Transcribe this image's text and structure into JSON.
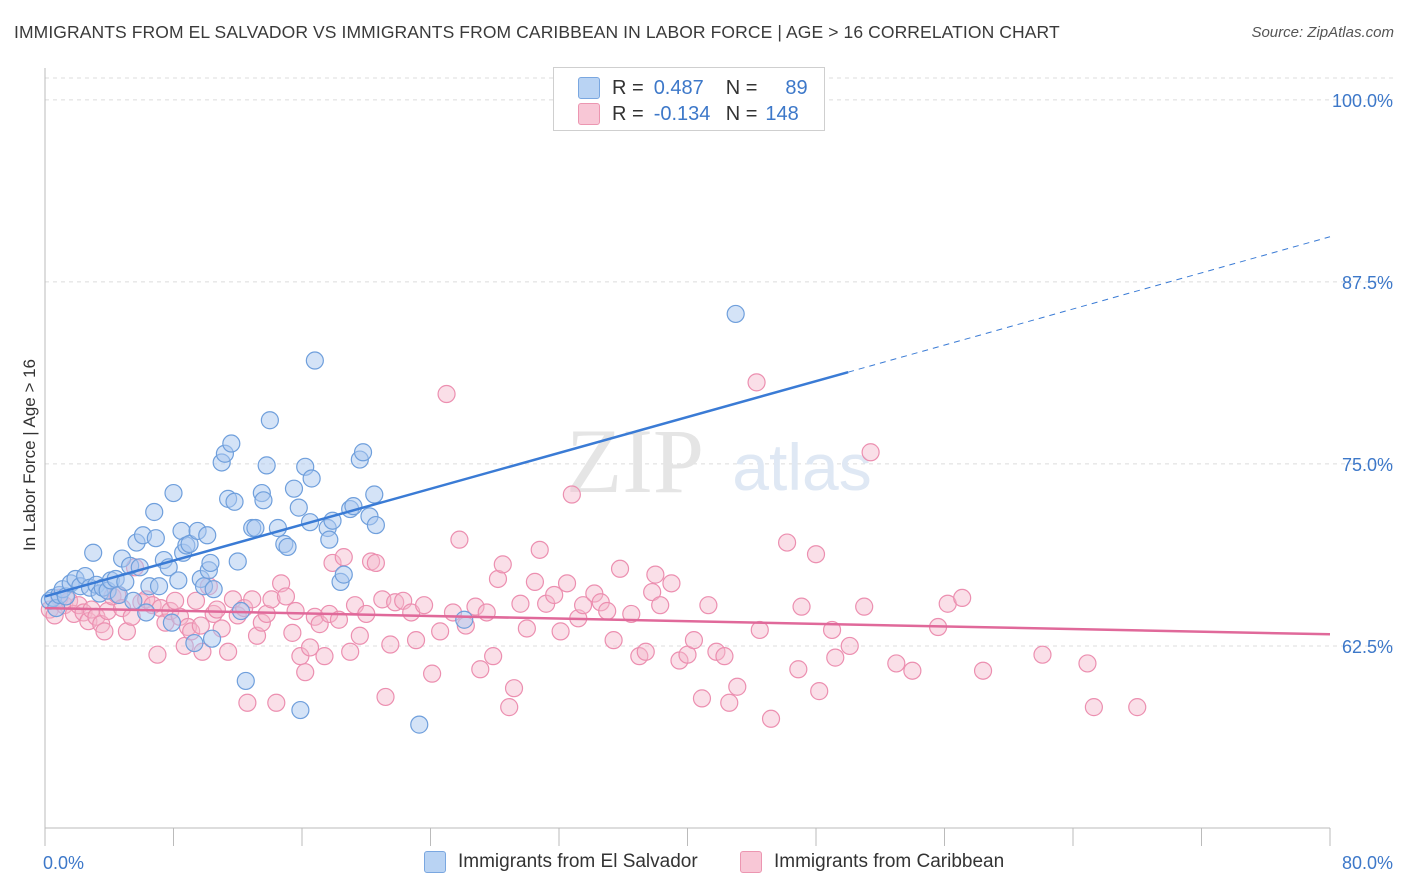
{
  "title": "IMMIGRANTS FROM EL SALVADOR VS IMMIGRANTS FROM CARIBBEAN IN LABOR FORCE | AGE > 16 CORRELATION CHART",
  "source": "Source: ZipAtlas.com",
  "legend": {
    "rows": [
      {
        "r_label": "R =",
        "r_value": "0.487",
        "n_label": "N =",
        "n_value": "89"
      },
      {
        "r_label": "R =",
        "r_value": "-0.134",
        "n_label": "N =",
        "n_value": "148"
      }
    ]
  },
  "bottom_legend": [
    "Immigrants from El Salvador",
    "Immigrants from Caribbean"
  ],
  "colors": {
    "blue": "#3a7bd5",
    "blue_fill": "#a9c8ef",
    "pink": "#e0699a",
    "pink_fill": "#f5b8cc"
  },
  "chart_data": {
    "type": "scatter",
    "title": "IMMIGRANTS FROM EL SALVADOR VS IMMIGRANTS FROM CARIBBEAN IN LABOR FORCE | AGE > 16 CORRELATION CHART",
    "xlabel": "",
    "ylabel": "In Labor Force | Age > 16",
    "xlim": [
      0,
      80
    ],
    "ylim": [
      50,
      101.5
    ],
    "x_tick_labels": [
      "0.0%",
      "80.0%"
    ],
    "y_ticks": [
      62.5,
      75.0,
      87.5,
      100.0
    ],
    "y_tick_labels": [
      "62.5%",
      "75.0%",
      "87.5%",
      "100.0%"
    ],
    "grid": true,
    "watermark": "ZIPatlas",
    "series": [
      {
        "name": "Immigrants from El Salvador",
        "trend": {
          "x": [
            0,
            50
          ],
          "y": [
            65.9,
            81.3
          ],
          "dashed_to": [
            80,
            90.6
          ]
        },
        "points": [
          [
            0.3,
            65.6
          ],
          [
            0.5,
            65.8
          ],
          [
            0.7,
            65.1
          ],
          [
            0.9,
            66.0
          ],
          [
            1.1,
            66.4
          ],
          [
            1.3,
            65.9
          ],
          [
            1.6,
            66.8
          ],
          [
            1.9,
            67.1
          ],
          [
            2.2,
            66.6
          ],
          [
            2.5,
            67.3
          ],
          [
            2.8,
            66.5
          ],
          [
            3.0,
            68.9
          ],
          [
            3.2,
            66.7
          ],
          [
            3.4,
            66.1
          ],
          [
            3.6,
            66.5
          ],
          [
            3.9,
            66.3
          ],
          [
            4.1,
            67.0
          ],
          [
            4.4,
            67.1
          ],
          [
            4.6,
            66.0
          ],
          [
            4.8,
            68.5
          ],
          [
            5.0,
            66.9
          ],
          [
            5.3,
            68.0
          ],
          [
            5.5,
            65.6
          ],
          [
            5.7,
            69.6
          ],
          [
            5.9,
            67.9
          ],
          [
            6.1,
            70.1
          ],
          [
            6.3,
            64.8
          ],
          [
            6.5,
            66.6
          ],
          [
            6.8,
            71.7
          ],
          [
            6.9,
            69.9
          ],
          [
            7.1,
            66.6
          ],
          [
            7.4,
            68.4
          ],
          [
            7.7,
            67.9
          ],
          [
            7.9,
            64.1
          ],
          [
            8.0,
            73.0
          ],
          [
            8.3,
            67.0
          ],
          [
            8.5,
            70.4
          ],
          [
            8.6,
            68.9
          ],
          [
            8.8,
            69.4
          ],
          [
            9.0,
            69.5
          ],
          [
            9.3,
            62.7
          ],
          [
            9.5,
            70.4
          ],
          [
            9.7,
            67.1
          ],
          [
            9.9,
            66.6
          ],
          [
            10.1,
            70.1
          ],
          [
            10.2,
            67.7
          ],
          [
            10.5,
            66.4
          ],
          [
            10.3,
            68.2
          ],
          [
            10.4,
            63.0
          ],
          [
            11.0,
            75.1
          ],
          [
            11.2,
            75.7
          ],
          [
            11.4,
            72.6
          ],
          [
            11.6,
            76.4
          ],
          [
            11.8,
            72.4
          ],
          [
            12.0,
            68.3
          ],
          [
            12.2,
            64.9
          ],
          [
            12.5,
            60.1
          ],
          [
            12.9,
            70.6
          ],
          [
            13.1,
            70.6
          ],
          [
            13.5,
            73.0
          ],
          [
            13.6,
            72.5
          ],
          [
            13.8,
            74.9
          ],
          [
            14.0,
            78.0
          ],
          [
            14.5,
            70.6
          ],
          [
            14.9,
            69.5
          ],
          [
            15.1,
            69.3
          ],
          [
            15.5,
            73.3
          ],
          [
            15.8,
            72.0
          ],
          [
            15.9,
            58.1
          ],
          [
            16.2,
            74.8
          ],
          [
            16.5,
            71.0
          ],
          [
            16.6,
            74.0
          ],
          [
            16.8,
            82.1
          ],
          [
            17.6,
            70.6
          ],
          [
            17.7,
            69.8
          ],
          [
            17.9,
            71.1
          ],
          [
            18.4,
            66.9
          ],
          [
            18.6,
            67.4
          ],
          [
            19.0,
            71.9
          ],
          [
            19.2,
            72.1
          ],
          [
            19.6,
            75.3
          ],
          [
            19.8,
            75.8
          ],
          [
            20.2,
            71.4
          ],
          [
            20.5,
            72.9
          ],
          [
            20.6,
            70.8
          ],
          [
            23.3,
            57.1
          ],
          [
            26.1,
            64.3
          ],
          [
            43.0,
            85.3
          ]
        ]
      },
      {
        "name": "Immigrants from Caribbean",
        "trend": {
          "x": [
            0,
            80
          ],
          "y": [
            65.1,
            63.3
          ]
        },
        "points": [
          [
            0.3,
            65.0
          ],
          [
            0.6,
            64.6
          ],
          [
            0.9,
            65.8
          ],
          [
            1.2,
            65.3
          ],
          [
            1.5,
            65.6
          ],
          [
            1.8,
            64.7
          ],
          [
            2.1,
            65.3
          ],
          [
            2.4,
            64.8
          ],
          [
            2.7,
            64.2
          ],
          [
            2.9,
            65.0
          ],
          [
            3.2,
            64.5
          ],
          [
            3.5,
            64.0
          ],
          [
            3.7,
            63.5
          ],
          [
            3.9,
            64.9
          ],
          [
            4.2,
            65.9
          ],
          [
            4.5,
            66.0
          ],
          [
            4.8,
            65.1
          ],
          [
            5.1,
            63.5
          ],
          [
            5.4,
            64.5
          ],
          [
            5.6,
            67.9
          ],
          [
            6.0,
            65.5
          ],
          [
            6.3,
            65.7
          ],
          [
            6.7,
            65.3
          ],
          [
            7.0,
            61.9
          ],
          [
            7.2,
            65.1
          ],
          [
            7.5,
            64.1
          ],
          [
            7.8,
            64.9
          ],
          [
            8.1,
            65.6
          ],
          [
            8.4,
            64.5
          ],
          [
            8.7,
            62.5
          ],
          [
            8.9,
            63.8
          ],
          [
            9.1,
            63.5
          ],
          [
            9.4,
            65.6
          ],
          [
            9.7,
            63.9
          ],
          [
            9.8,
            62.1
          ],
          [
            10.2,
            66.6
          ],
          [
            10.5,
            64.7
          ],
          [
            10.7,
            65.0
          ],
          [
            11.0,
            63.7
          ],
          [
            11.4,
            62.1
          ],
          [
            11.7,
            65.7
          ],
          [
            12.0,
            64.6
          ],
          [
            12.4,
            65.1
          ],
          [
            12.6,
            58.6
          ],
          [
            12.9,
            65.7
          ],
          [
            13.2,
            63.2
          ],
          [
            13.5,
            64.1
          ],
          [
            13.8,
            64.7
          ],
          [
            14.1,
            65.7
          ],
          [
            14.4,
            58.6
          ],
          [
            14.7,
            66.8
          ],
          [
            15.0,
            65.9
          ],
          [
            15.4,
            63.4
          ],
          [
            15.6,
            64.9
          ],
          [
            15.9,
            61.8
          ],
          [
            16.2,
            60.7
          ],
          [
            16.5,
            62.4
          ],
          [
            16.8,
            64.5
          ],
          [
            17.1,
            64.0
          ],
          [
            17.4,
            61.8
          ],
          [
            17.7,
            64.7
          ],
          [
            17.9,
            68.2
          ],
          [
            18.3,
            64.3
          ],
          [
            18.6,
            68.6
          ],
          [
            19.0,
            62.1
          ],
          [
            19.3,
            65.3
          ],
          [
            19.6,
            63.2
          ],
          [
            20.0,
            64.7
          ],
          [
            20.3,
            68.3
          ],
          [
            20.6,
            68.2
          ],
          [
            21.0,
            65.7
          ],
          [
            21.2,
            59.0
          ],
          [
            21.5,
            62.6
          ],
          [
            21.8,
            65.5
          ],
          [
            22.3,
            65.6
          ],
          [
            22.8,
            64.8
          ],
          [
            23.1,
            62.9
          ],
          [
            23.6,
            65.3
          ],
          [
            24.1,
            60.6
          ],
          [
            24.6,
            63.5
          ],
          [
            25.0,
            79.8
          ],
          [
            25.4,
            64.8
          ],
          [
            25.8,
            69.8
          ],
          [
            26.2,
            63.9
          ],
          [
            26.8,
            65.2
          ],
          [
            27.1,
            60.9
          ],
          [
            27.5,
            64.8
          ],
          [
            27.9,
            61.8
          ],
          [
            28.2,
            67.1
          ],
          [
            28.5,
            68.1
          ],
          [
            28.9,
            58.3
          ],
          [
            29.2,
            59.6
          ],
          [
            29.6,
            65.4
          ],
          [
            30.0,
            63.7
          ],
          [
            30.5,
            66.9
          ],
          [
            30.8,
            69.1
          ],
          [
            31.2,
            65.4
          ],
          [
            31.7,
            66.0
          ],
          [
            32.1,
            63.5
          ],
          [
            32.5,
            66.8
          ],
          [
            32.8,
            72.9
          ],
          [
            33.2,
            64.4
          ],
          [
            33.5,
            65.3
          ],
          [
            34.2,
            66.1
          ],
          [
            34.6,
            65.5
          ],
          [
            35.0,
            64.9
          ],
          [
            35.4,
            62.9
          ],
          [
            35.8,
            67.8
          ],
          [
            36.5,
            64.7
          ],
          [
            37.0,
            61.8
          ],
          [
            37.4,
            62.1
          ],
          [
            37.8,
            66.2
          ],
          [
            38.0,
            67.4
          ],
          [
            38.3,
            65.3
          ],
          [
            39.0,
            66.8
          ],
          [
            39.5,
            61.5
          ],
          [
            40.0,
            61.9
          ],
          [
            40.4,
            62.9
          ],
          [
            40.9,
            58.9
          ],
          [
            41.3,
            65.3
          ],
          [
            41.8,
            62.1
          ],
          [
            42.3,
            61.8
          ],
          [
            42.6,
            58.6
          ],
          [
            43.1,
            59.7
          ],
          [
            44.3,
            80.6
          ],
          [
            44.5,
            63.6
          ],
          [
            45.2,
            57.5
          ],
          [
            46.2,
            69.6
          ],
          [
            46.9,
            60.9
          ],
          [
            47.1,
            65.2
          ],
          [
            48.0,
            68.8
          ],
          [
            48.2,
            59.4
          ],
          [
            49.0,
            63.6
          ],
          [
            49.2,
            61.7
          ],
          [
            50.1,
            62.5
          ],
          [
            51.0,
            65.2
          ],
          [
            51.4,
            75.8
          ],
          [
            53.0,
            61.3
          ],
          [
            54.0,
            60.8
          ],
          [
            55.6,
            63.8
          ],
          [
            56.2,
            65.4
          ],
          [
            57.1,
            65.8
          ],
          [
            58.4,
            60.8
          ],
          [
            62.1,
            61.9
          ],
          [
            64.9,
            61.3
          ],
          [
            65.3,
            58.3
          ],
          [
            68.0,
            58.3
          ]
        ]
      }
    ]
  }
}
